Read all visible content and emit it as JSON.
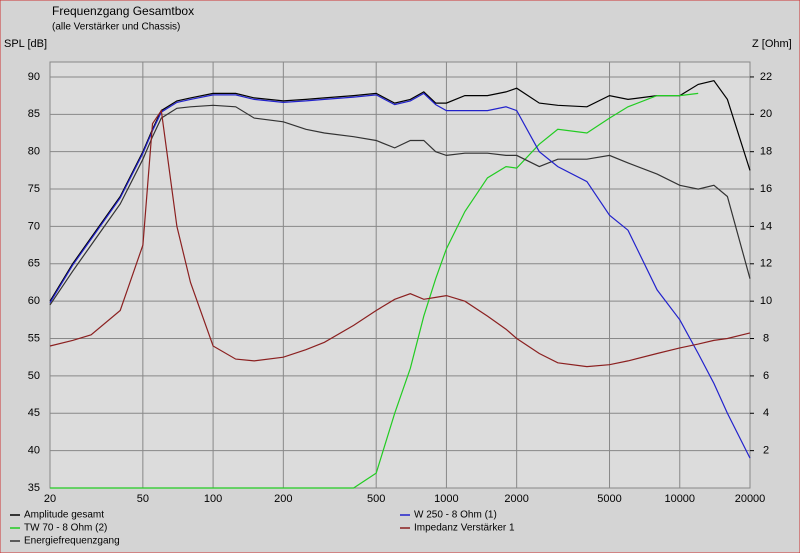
{
  "chart_data": {
    "type": "line",
    "title": "Frequenzgang Gesamtbox",
    "subtitle": "(alle Verstärker und Chassis)",
    "y_label": "SPL [dB]",
    "y2_label": "Z [Ohm]",
    "x_scale": "log",
    "grid": true,
    "x": [
      20,
      25,
      30,
      40,
      50,
      55,
      60,
      70,
      80,
      100,
      125,
      150,
      200,
      250,
      300,
      400,
      500,
      600,
      700,
      800,
      900,
      1000,
      1200,
      1500,
      1800,
      2000,
      2500,
      3000,
      4000,
      5000,
      6000,
      8000,
      10000,
      12000,
      14000,
      16000,
      20000
    ],
    "xlim": [
      20,
      20000
    ],
    "xticks": [
      20,
      50,
      100,
      200,
      500,
      1000,
      2000,
      5000,
      10000,
      20000
    ],
    "ylim": [
      35,
      92
    ],
    "yticks": [
      35,
      40,
      45,
      50,
      55,
      60,
      65,
      70,
      75,
      80,
      85,
      90
    ],
    "y2lim": [
      0,
      22.8
    ],
    "y2ticks": [
      2,
      4,
      6,
      8,
      10,
      12,
      14,
      16,
      18,
      20,
      22
    ],
    "series": [
      {
        "name": "Amplitude gesamt",
        "color": "#000000",
        "values": [
          60,
          65,
          68.5,
          74,
          80,
          83,
          85.5,
          86.8,
          87.2,
          87.8,
          87.8,
          87.2,
          86.8,
          87,
          87.2,
          87.5,
          87.8,
          86.5,
          87,
          88,
          86.5,
          86.5,
          87.5,
          87.5,
          88,
          88.5,
          86.5,
          86.2,
          86,
          87.5,
          87,
          87.5,
          87.5,
          89,
          89.5,
          87,
          77.5
        ]
      },
      {
        "name": "TW 70 - 8 Ohm (2)",
        "color": "#22cc22",
        "values": [
          35,
          35,
          35,
          35,
          35,
          35,
          35,
          35,
          35,
          35,
          35,
          35,
          35,
          35,
          35,
          35,
          37,
          45,
          51,
          58,
          63,
          67,
          72,
          76.5,
          78,
          77.8,
          81,
          83,
          82.5,
          84.5,
          86,
          87.5,
          87.5,
          87.8,
          null,
          null,
          null
        ]
      },
      {
        "name": "Energiefrequenzgang",
        "color": "#333333",
        "values": [
          59.5,
          64,
          67.5,
          73,
          79,
          82,
          84.5,
          85.8,
          86,
          86.2,
          86,
          84.5,
          84,
          83,
          82.5,
          82,
          81.5,
          80.5,
          81.5,
          81.5,
          80,
          79.5,
          79.8,
          79.8,
          79.5,
          79.5,
          78,
          79,
          79,
          79.5,
          78.5,
          77,
          75.5,
          75,
          75.5,
          74,
          63
        ]
      },
      {
        "name": "W 250 - 8 Ohm (1)",
        "color": "#2222cc",
        "values": [
          59.8,
          64.8,
          68.3,
          73.8,
          79.8,
          82.8,
          85.3,
          86.6,
          87,
          87.6,
          87.6,
          87,
          86.6,
          86.8,
          87,
          87.3,
          87.6,
          86.3,
          86.8,
          87.8,
          86.3,
          85.5,
          85.5,
          85.5,
          86,
          85.5,
          80,
          78,
          76,
          71.5,
          69.5,
          61.5,
          57.5,
          53,
          49,
          45,
          39
        ]
      },
      {
        "name": "Impedanz Verstärker 1",
        "color": "#8b2020",
        "axis": "y2",
        "values": [
          7.6,
          7.9,
          8.2,
          9.5,
          13,
          19.5,
          20.2,
          14,
          11,
          7.6,
          6.9,
          6.8,
          7.0,
          7.4,
          7.8,
          8.7,
          9.5,
          10.1,
          10.4,
          10.1,
          10.2,
          10.3,
          10,
          9.2,
          8.5,
          8.0,
          7.2,
          6.7,
          6.5,
          6.6,
          6.8,
          7.2,
          7.5,
          7.7,
          7.9,
          8.0,
          8.3
        ]
      }
    ]
  }
}
